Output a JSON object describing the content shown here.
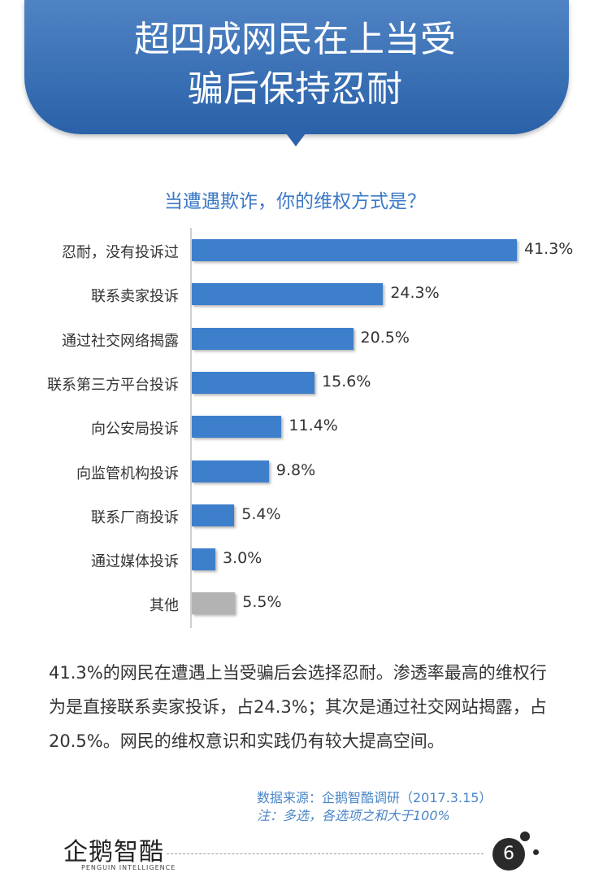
{
  "header": {
    "title_line1": "超四成网民在上当受",
    "title_line2": "骗后保持忍耐"
  },
  "question": "当遭遇欺诈，你的维权方式是？",
  "colors": {
    "banner": "#2a61a8",
    "bar": "#3e7fcc",
    "bar_other": "#b3b3b3",
    "question": "#3a78c8"
  },
  "chart_data": {
    "type": "bar",
    "orientation": "horizontal",
    "title": "当遭遇欺诈，你的维权方式是？",
    "categories": [
      "忍耐，没有投诉过",
      "联系卖家投诉",
      "通过社交网络揭露",
      "联系第三方平台投诉",
      "向公安局投诉",
      "向监管机构投诉",
      "联系厂商投诉",
      "通过媒体投诉",
      "其他"
    ],
    "values": [
      41.3,
      24.3,
      20.5,
      15.6,
      11.4,
      9.8,
      5.4,
      3.0,
      5.5
    ],
    "value_labels": [
      "41.3%",
      "24.3%",
      "20.5%",
      "15.6%",
      "11.4%",
      "9.8%",
      "5.4%",
      "3.0%",
      "5.5%"
    ],
    "unit": "%",
    "xlim": [
      0,
      41.3
    ]
  },
  "summary": "41.3%的网民在遭遇上当受骗后会选择忍耐。渗透率最高的维权行为是直接联系卖家投诉，占24.3%；其次是通过社交网站揭露，占20.5%。网民的维权意识和实践仍有较大提高空间。",
  "source": {
    "line1": "数据来源：企鹅智酷调研（2017.3.15）",
    "line2": "注：多选，各选项之和大于100%"
  },
  "footer": {
    "logo": "企鹅智酷",
    "logo_sub": "PENGUIN INTELLIGENCE",
    "page": "6"
  }
}
